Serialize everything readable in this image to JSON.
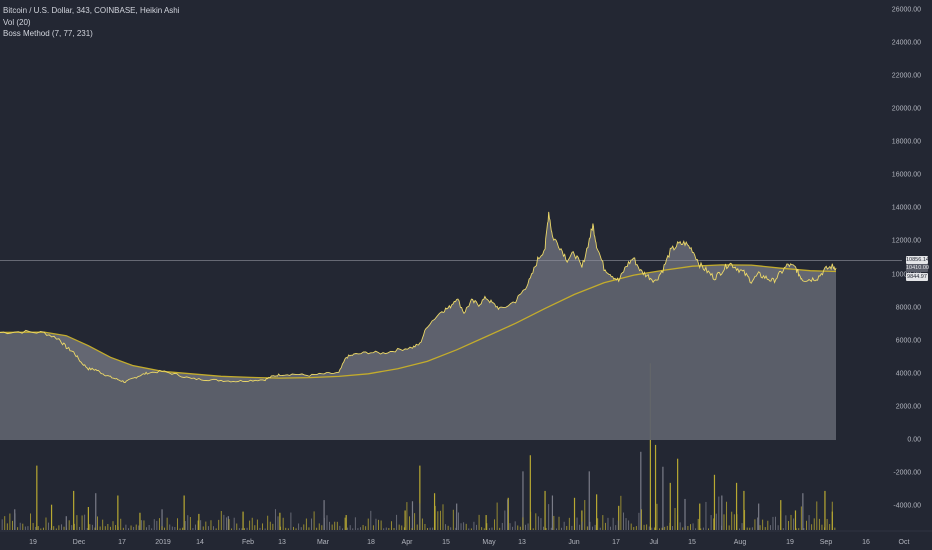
{
  "legend": {
    "symbol": "Bitcoin / U.S. Dollar, 343, COINBASE, Heikin Ashi",
    "volume": "Vol (20)",
    "indicator": "Boss Method (7, 77, 231)"
  },
  "colors": {
    "background": "#232733",
    "price_line": "#ecd868",
    "ma_line": "#c3ac2c",
    "area_fill": "#5e616d",
    "band_fill": "#9a9ca6",
    "volume_up": "#b8a932",
    "volume_down": "#7a7c88",
    "crosshair": "#8e919b",
    "tag_light": "#e4e5e8",
    "tag_dark": "#5a5d69"
  },
  "price_tags": {
    "crosshair_value": "10856.14",
    "current_value": "10410.00",
    "ma_value": "9844.97"
  },
  "chart_data": {
    "type": "line",
    "title": "Bitcoin / U.S. Dollar, 343, COINBASE, Heikin Ashi",
    "y_axis": {
      "tick_labels": [
        "26000.00",
        "24000.00",
        "22000.00",
        "20000.00",
        "18000.00",
        "16000.00",
        "14000.00",
        "12000.00",
        "10000.00",
        "8000.00",
        "6000.00",
        "4000.00",
        "2000.00",
        "0.00",
        "-2000.00",
        "-4000.00"
      ],
      "ylim": [
        -5000,
        26500
      ]
    },
    "x_axis": {
      "tick_labels": [
        "19",
        "Dec",
        "17",
        "2019",
        "14",
        "Feb",
        "13",
        "Mar",
        "18",
        "Apr",
        "15",
        "May",
        "13",
        "Jun",
        "17",
        "Jul",
        "15",
        "Aug",
        "19",
        "Sep",
        "16",
        "Oct"
      ]
    },
    "series": [
      {
        "role": "price",
        "points": [
          [
            0,
            6500
          ],
          [
            3,
            6550
          ],
          [
            6,
            6480
          ],
          [
            8,
            6100
          ],
          [
            9,
            5600
          ],
          [
            10,
            5300
          ],
          [
            11,
            4700
          ],
          [
            12,
            4300
          ],
          [
            13,
            4250
          ],
          [
            14,
            4000
          ],
          [
            15,
            3800
          ],
          [
            16,
            3650
          ],
          [
            17,
            3500
          ],
          [
            18,
            3700
          ],
          [
            19,
            3900
          ],
          [
            20,
            4050
          ],
          [
            22,
            4150
          ],
          [
            24,
            3950
          ],
          [
            26,
            3700
          ],
          [
            28,
            3650
          ],
          [
            30,
            3600
          ],
          [
            32,
            3550
          ],
          [
            34,
            3600
          ],
          [
            36,
            3650
          ],
          [
            37,
            3850
          ],
          [
            38,
            3950
          ],
          [
            40,
            3980
          ],
          [
            42,
            3900
          ],
          [
            44,
            4000
          ],
          [
            46,
            4050
          ],
          [
            47,
            5000
          ],
          [
            48,
            5150
          ],
          [
            50,
            5300
          ],
          [
            52,
            5250
          ],
          [
            54,
            5450
          ],
          [
            56,
            5600
          ],
          [
            57,
            5800
          ],
          [
            58,
            6900
          ],
          [
            60,
            7800
          ],
          [
            61,
            8000
          ],
          [
            62,
            8600
          ],
          [
            63,
            7700
          ],
          [
            64,
            8400
          ],
          [
            65,
            8200
          ],
          [
            66,
            8600
          ],
          [
            67,
            8200
          ],
          [
            68,
            7900
          ],
          [
            70,
            8400
          ],
          [
            71,
            9000
          ],
          [
            72,
            9700
          ],
          [
            73,
            10900
          ],
          [
            74,
            11600
          ],
          [
            74.5,
            13800
          ],
          [
            75,
            12300
          ],
          [
            76,
            11700
          ],
          [
            77,
            10900
          ],
          [
            78,
            11300
          ],
          [
            79,
            10400
          ],
          [
            80,
            12100
          ],
          [
            80.5,
            13000
          ],
          [
            81,
            11800
          ],
          [
            82,
            10400
          ],
          [
            83,
            10000
          ],
          [
            84,
            9600
          ],
          [
            85,
            10500
          ],
          [
            86,
            11000
          ],
          [
            87,
            10200
          ],
          [
            88,
            9900
          ],
          [
            89,
            9600
          ],
          [
            90,
            10300
          ],
          [
            91,
            11400
          ],
          [
            92,
            11800
          ],
          [
            93,
            11900
          ],
          [
            94,
            11500
          ],
          [
            95,
            10600
          ],
          [
            96,
            10200
          ],
          [
            97,
            9800
          ],
          [
            98,
            10200
          ],
          [
            99,
            10700
          ],
          [
            100,
            10400
          ],
          [
            101,
            10100
          ],
          [
            102,
            9600
          ],
          [
            103,
            10000
          ],
          [
            104,
            9800
          ],
          [
            105,
            9600
          ],
          [
            106,
            10100
          ],
          [
            107,
            10600
          ],
          [
            108,
            10400
          ],
          [
            108.5,
            10000
          ],
          [
            109,
            9700
          ],
          [
            110,
            9700
          ],
          [
            111,
            9800
          ],
          [
            112,
            10300
          ],
          [
            113,
            10500
          ],
          [
            113.5,
            10400
          ]
        ]
      },
      {
        "role": "moving_average",
        "points": [
          [
            0,
            6500
          ],
          [
            6,
            6520
          ],
          [
            9,
            6300
          ],
          [
            12,
            5700
          ],
          [
            15,
            5000
          ],
          [
            18,
            4500
          ],
          [
            22,
            4150
          ],
          [
            26,
            4000
          ],
          [
            30,
            3850
          ],
          [
            34,
            3780
          ],
          [
            38,
            3740
          ],
          [
            42,
            3770
          ],
          [
            46,
            3840
          ],
          [
            50,
            4000
          ],
          [
            54,
            4300
          ],
          [
            58,
            4750
          ],
          [
            62,
            5450
          ],
          [
            66,
            6250
          ],
          [
            70,
            7050
          ],
          [
            74,
            7950
          ],
          [
            78,
            8800
          ],
          [
            82,
            9500
          ],
          [
            86,
            9960
          ],
          [
            90,
            10250
          ],
          [
            94,
            10500
          ],
          [
            98,
            10580
          ],
          [
            102,
            10570
          ],
          [
            106,
            10380
          ],
          [
            110,
            10230
          ],
          [
            113.5,
            10180
          ]
        ]
      }
    ],
    "volume": [
      {
        "x": 2,
        "v": 1800
      },
      {
        "x": 5,
        "v": 5600
      },
      {
        "x": 7,
        "v": 2200
      },
      {
        "x": 9,
        "v": 1200
      },
      {
        "x": 10,
        "v": 3400
      },
      {
        "x": 12,
        "v": 2000
      },
      {
        "x": 13,
        "v": 3200
      },
      {
        "x": 16,
        "v": 3000
      },
      {
        "x": 19,
        "v": 1500
      },
      {
        "x": 22,
        "v": 1800
      },
      {
        "x": 25,
        "v": 3000
      },
      {
        "x": 27,
        "v": 1400
      },
      {
        "x": 31,
        "v": 1200
      },
      {
        "x": 33,
        "v": 1600
      },
      {
        "x": 38,
        "v": 1500
      },
      {
        "x": 44,
        "v": 2600
      },
      {
        "x": 47,
        "v": 1300
      },
      {
        "x": 55,
        "v": 1700
      },
      {
        "x": 56,
        "v": 2500
      },
      {
        "x": 57,
        "v": 5600
      },
      {
        "x": 59,
        "v": 3200
      },
      {
        "x": 62,
        "v": 2300
      },
      {
        "x": 66,
        "v": 1300
      },
      {
        "x": 69,
        "v": 2800
      },
      {
        "x": 71,
        "v": 5100
      },
      {
        "x": 72,
        "v": 6500
      },
      {
        "x": 74,
        "v": 3400
      },
      {
        "x": 75,
        "v": 3000
      },
      {
        "x": 78,
        "v": 2800
      },
      {
        "x": 79,
        "v": 1700
      },
      {
        "x": 80,
        "v": 5100
      },
      {
        "x": 81,
        "v": 3100
      },
      {
        "x": 84,
        "v": 2100
      },
      {
        "x": 87,
        "v": 6800
      },
      {
        "x": 88.3,
        "v": 14500
      },
      {
        "x": 89,
        "v": 7400
      },
      {
        "x": 90,
        "v": 5500
      },
      {
        "x": 91,
        "v": 4100
      },
      {
        "x": 92,
        "v": 6200
      },
      {
        "x": 93,
        "v": 2700
      },
      {
        "x": 95,
        "v": 2300
      },
      {
        "x": 97,
        "v": 4800
      },
      {
        "x": 98,
        "v": 3000
      },
      {
        "x": 100,
        "v": 4100
      },
      {
        "x": 101,
        "v": 3400
      },
      {
        "x": 103,
        "v": 2300
      },
      {
        "x": 106,
        "v": 2600
      },
      {
        "x": 108,
        "v": 1700
      },
      {
        "x": 109,
        "v": 3200
      },
      {
        "x": 112,
        "v": 3400
      },
      {
        "x": 113,
        "v": 1600
      }
    ]
  }
}
